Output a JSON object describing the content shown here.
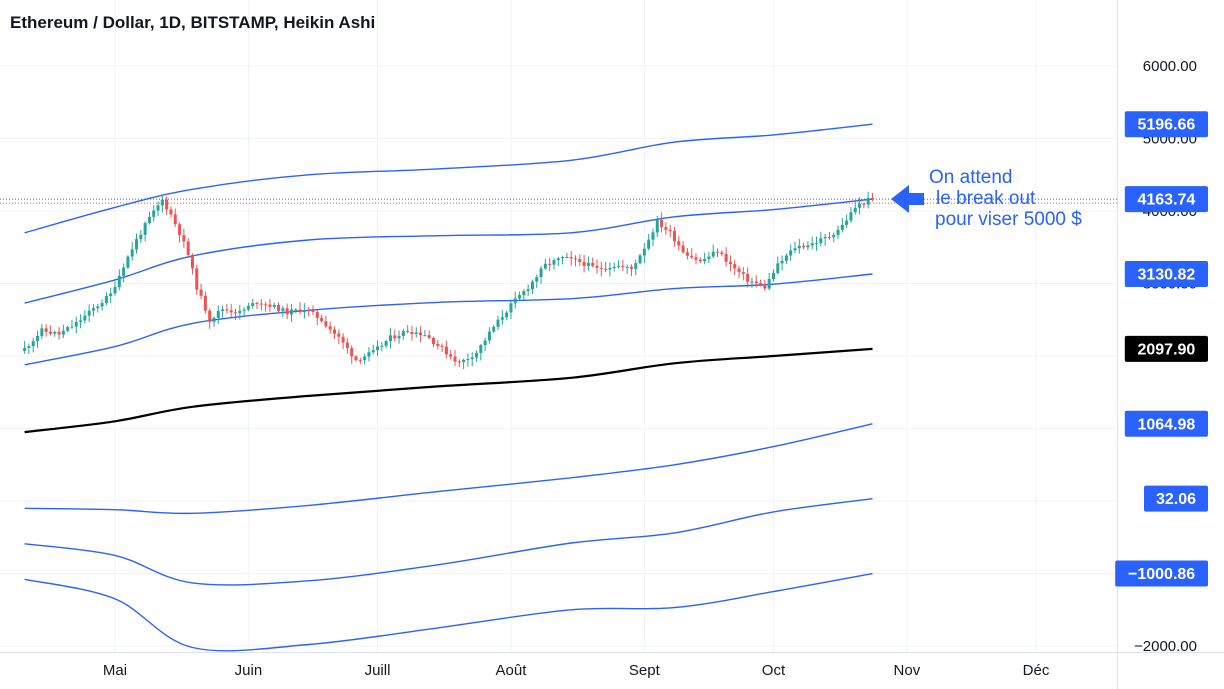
{
  "header": {
    "title": "Ethereum / Dollar, 1D, BITSTAMP, Heikin Ashi"
  },
  "annotation": {
    "line1": "On attend",
    "line2": "le break out",
    "line3": "pour viser 5000 $"
  },
  "colors": {
    "up": "#26a69a",
    "down": "#ef5350",
    "band": "#2962ff",
    "mid": "#000000",
    "grid": "#f0f3fa"
  },
  "chart_data": {
    "type": "candlestick",
    "style": "Heikin Ashi",
    "symbol": "Ethereum / Dollar",
    "interval": "1D",
    "exchange": "BITSTAMP",
    "y_scale": "linear",
    "ylim": [
      -2300,
      6650
    ],
    "x_range": [
      "2021-04-10",
      "2021-12-31"
    ],
    "x_ticks": [
      {
        "label": "Mai",
        "date": "2021-05-01"
      },
      {
        "label": "Juin",
        "date": "2021-06-01"
      },
      {
        "label": "Juill",
        "date": "2021-07-01"
      },
      {
        "label": "Août",
        "date": "2021-08-01"
      },
      {
        "label": "Sept",
        "date": "2021-09-01"
      },
      {
        "label": "Oct",
        "date": "2021-10-01"
      },
      {
        "label": "Nov",
        "date": "2021-11-01"
      },
      {
        "label": "Déc",
        "date": "2021-12-01"
      }
    ],
    "y_ticks": [
      {
        "label": "6000.00",
        "value": 6000
      },
      {
        "label": "5000.00",
        "value": 5000
      },
      {
        "label": "4000.00",
        "value": 4000
      },
      {
        "label": "3000.00",
        "value": 3000
      },
      {
        "label": "−2000.00",
        "value": -2000
      }
    ],
    "price_badges": [
      {
        "label": "5196.66",
        "value": 5196.66,
        "series": "upper3"
      },
      {
        "label": "4163.74",
        "value": 4163.74,
        "series": "upper2"
      },
      {
        "label": "3130.82",
        "value": 3130.82,
        "series": "upper1"
      },
      {
        "label": "2097.90",
        "value": 2097.9,
        "series": "mid"
      },
      {
        "label": "1064.98",
        "value": 1064.98,
        "series": "lower1"
      },
      {
        "label": "32.06",
        "value": 32.06,
        "series": "lower2"
      },
      {
        "label": "−1000.86",
        "value": -1000.86,
        "series": "lower3"
      }
    ],
    "current_price": 4163.74,
    "price_points": [
      [
        "2021-04-10",
        2100
      ],
      [
        "2021-04-14",
        2350
      ],
      [
        "2021-04-18",
        2300
      ],
      [
        "2021-04-22",
        2450
      ],
      [
        "2021-04-26",
        2650
      ],
      [
        "2021-04-30",
        2850
      ],
      [
        "2021-05-03",
        3250
      ],
      [
        "2021-05-06",
        3600
      ],
      [
        "2021-05-09",
        3900
      ],
      [
        "2021-05-12",
        4150
      ],
      [
        "2021-05-14",
        3950
      ],
      [
        "2021-05-16",
        3700
      ],
      [
        "2021-05-18",
        3400
      ],
      [
        "2021-05-20",
        2950
      ],
      [
        "2021-05-23",
        2500
      ],
      [
        "2021-05-26",
        2650
      ],
      [
        "2021-05-30",
        2600
      ],
      [
        "2021-06-03",
        2750
      ],
      [
        "2021-06-06",
        2700
      ],
      [
        "2021-06-10",
        2600
      ],
      [
        "2021-06-14",
        2650
      ],
      [
        "2021-06-18",
        2500
      ],
      [
        "2021-06-22",
        2250
      ],
      [
        "2021-06-26",
        1950
      ],
      [
        "2021-06-30",
        2050
      ],
      [
        "2021-07-04",
        2250
      ],
      [
        "2021-07-08",
        2350
      ],
      [
        "2021-07-12",
        2300
      ],
      [
        "2021-07-16",
        2100
      ],
      [
        "2021-07-20",
        1900
      ],
      [
        "2021-07-24",
        2050
      ],
      [
        "2021-07-28",
        2400
      ],
      [
        "2021-08-01",
        2700
      ],
      [
        "2021-08-05",
        2950
      ],
      [
        "2021-08-09",
        3250
      ],
      [
        "2021-08-13",
        3350
      ],
      [
        "2021-08-17",
        3300
      ],
      [
        "2021-08-21",
        3200
      ],
      [
        "2021-08-25",
        3250
      ],
      [
        "2021-08-29",
        3200
      ],
      [
        "2021-09-01",
        3500
      ],
      [
        "2021-09-04",
        3850
      ],
      [
        "2021-09-07",
        3700
      ],
      [
        "2021-09-10",
        3450
      ],
      [
        "2021-09-14",
        3300
      ],
      [
        "2021-09-18",
        3450
      ],
      [
        "2021-09-22",
        3200
      ],
      [
        "2021-09-25",
        3050
      ],
      [
        "2021-09-29",
        2950
      ],
      [
        "2021-10-02",
        3250
      ],
      [
        "2021-10-06",
        3500
      ],
      [
        "2021-10-10",
        3550
      ],
      [
        "2021-10-14",
        3650
      ],
      [
        "2021-10-17",
        3800
      ],
      [
        "2021-10-20",
        4050
      ],
      [
        "2021-10-23",
        4150
      ],
      [
        "2021-10-24",
        4163.74
      ]
    ],
    "series": [
      {
        "id": "upper3",
        "color": "#2962ff",
        "points": [
          [
            "2021-04-10",
            3700
          ],
          [
            "2021-05-01",
            4050
          ],
          [
            "2021-05-19",
            4300
          ],
          [
            "2021-06-15",
            4500
          ],
          [
            "2021-07-15",
            4580
          ],
          [
            "2021-08-15",
            4700
          ],
          [
            "2021-09-08",
            4950
          ],
          [
            "2021-10-01",
            5050
          ],
          [
            "2021-10-24",
            5196.66
          ]
        ]
      },
      {
        "id": "upper2",
        "color": "#2962ff",
        "points": [
          [
            "2021-04-10",
            2730
          ],
          [
            "2021-05-01",
            3050
          ],
          [
            "2021-05-19",
            3380
          ],
          [
            "2021-06-15",
            3600
          ],
          [
            "2021-07-15",
            3660
          ],
          [
            "2021-08-15",
            3700
          ],
          [
            "2021-09-08",
            3920
          ],
          [
            "2021-10-01",
            4020
          ],
          [
            "2021-10-24",
            4163.74
          ]
        ]
      },
      {
        "id": "upper1",
        "color": "#2962ff",
        "points": [
          [
            "2021-04-10",
            1880
          ],
          [
            "2021-05-01",
            2130
          ],
          [
            "2021-05-19",
            2450
          ],
          [
            "2021-06-15",
            2630
          ],
          [
            "2021-07-15",
            2740
          ],
          [
            "2021-08-15",
            2790
          ],
          [
            "2021-09-08",
            2930
          ],
          [
            "2021-10-01",
            2990
          ],
          [
            "2021-10-24",
            3130.82
          ]
        ]
      },
      {
        "id": "mid",
        "color": "#000000",
        "points": [
          [
            "2021-04-10",
            950
          ],
          [
            "2021-05-01",
            1100
          ],
          [
            "2021-05-19",
            1300
          ],
          [
            "2021-06-15",
            1450
          ],
          [
            "2021-07-15",
            1580
          ],
          [
            "2021-08-15",
            1700
          ],
          [
            "2021-09-08",
            1900
          ],
          [
            "2021-10-01",
            2000
          ],
          [
            "2021-10-24",
            2097.9
          ]
        ]
      },
      {
        "id": "lower1",
        "color": "#2962ff",
        "points": [
          [
            "2021-04-10",
            -100
          ],
          [
            "2021-05-01",
            -120
          ],
          [
            "2021-05-19",
            -170
          ],
          [
            "2021-06-15",
            -60
          ],
          [
            "2021-07-15",
            130
          ],
          [
            "2021-08-15",
            320
          ],
          [
            "2021-09-08",
            500
          ],
          [
            "2021-10-01",
            750
          ],
          [
            "2021-10-24",
            1064.98
          ]
        ]
      },
      {
        "id": "lower2",
        "color": "#2962ff",
        "points": [
          [
            "2021-04-10",
            -590
          ],
          [
            "2021-05-01",
            -750
          ],
          [
            "2021-05-19",
            -1130
          ],
          [
            "2021-06-15",
            -1100
          ],
          [
            "2021-07-15",
            -880
          ],
          [
            "2021-08-15",
            -580
          ],
          [
            "2021-09-08",
            -440
          ],
          [
            "2021-10-01",
            -150
          ],
          [
            "2021-10-24",
            32.06
          ]
        ]
      },
      {
        "id": "lower3",
        "color": "#2962ff",
        "points": [
          [
            "2021-04-10",
            -1080
          ],
          [
            "2021-05-01",
            -1350
          ],
          [
            "2021-05-19",
            -2020
          ],
          [
            "2021-06-15",
            -1980
          ],
          [
            "2021-07-15",
            -1750
          ],
          [
            "2021-08-15",
            -1500
          ],
          [
            "2021-09-08",
            -1470
          ],
          [
            "2021-10-01",
            -1250
          ],
          [
            "2021-10-24",
            -1000.86
          ]
        ]
      }
    ]
  }
}
